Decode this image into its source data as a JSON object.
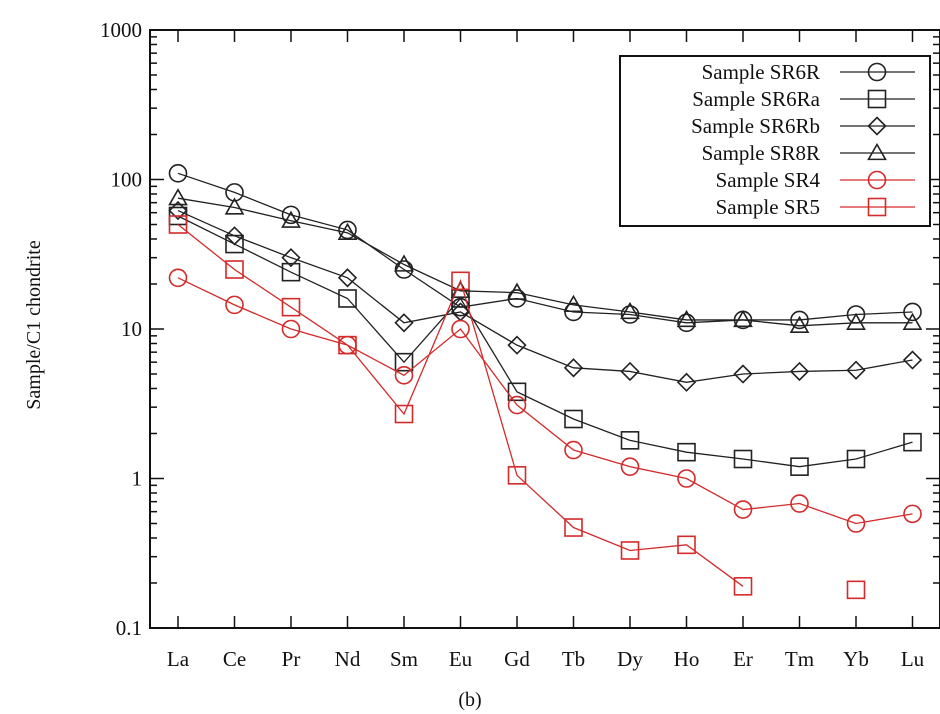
{
  "chart_data": {
    "type": "line",
    "title": "",
    "xlabel": "",
    "ylabel": "Sample/C1 chondrite",
    "caption": "(b)",
    "yscale": "log",
    "ylim": [
      0.1,
      1000
    ],
    "ytick_labels": [
      "0.1",
      "1",
      "10",
      "100",
      "1000"
    ],
    "categories": [
      "La",
      "Ce",
      "Pr",
      "Nd",
      "Sm",
      "Eu",
      "Gd",
      "Tb",
      "Dy",
      "Ho",
      "Er",
      "Tm",
      "Yb",
      "Lu"
    ],
    "legend_position": "top-right",
    "grid": false,
    "series": [
      {
        "name": "Sample SR6R",
        "color": "#222222",
        "marker": "circle",
        "values": [
          110,
          82,
          58,
          46,
          25,
          14,
          16,
          13,
          12.5,
          11,
          11.5,
          11.5,
          12.5,
          13
        ]
      },
      {
        "name": "Sample SR6Ra",
        "color": "#222222",
        "marker": "square",
        "values": [
          57,
          37,
          24,
          16,
          6,
          16,
          3.8,
          2.5,
          1.8,
          1.5,
          1.35,
          1.2,
          1.35,
          1.75
        ]
      },
      {
        "name": "Sample SR6Rb",
        "color": "#222222",
        "marker": "diamond",
        "values": [
          62,
          42,
          30,
          22,
          11,
          13,
          7.8,
          5.5,
          5.2,
          4.4,
          5,
          5.2,
          5.3,
          6.2
        ]
      },
      {
        "name": "Sample SR8R",
        "color": "#222222",
        "marker": "triangle",
        "values": [
          75,
          65,
          53,
          44,
          27,
          18,
          17.5,
          14.5,
          13,
          11.5,
          11.5,
          10.5,
          11,
          11
        ]
      },
      {
        "name": "Sample SR4",
        "color": "#d42a2a",
        "marker": "circle",
        "values": [
          22,
          14.5,
          10,
          7.8,
          4.9,
          10,
          3.1,
          1.55,
          1.2,
          1.0,
          0.62,
          0.68,
          0.5,
          0.58
        ]
      },
      {
        "name": "Sample SR5",
        "color": "#d42a2a",
        "marker": "square",
        "values": [
          50,
          25,
          14,
          7.8,
          2.7,
          21,
          1.05,
          0.47,
          0.33,
          0.36,
          0.19,
          null,
          0.18,
          null
        ]
      }
    ]
  }
}
